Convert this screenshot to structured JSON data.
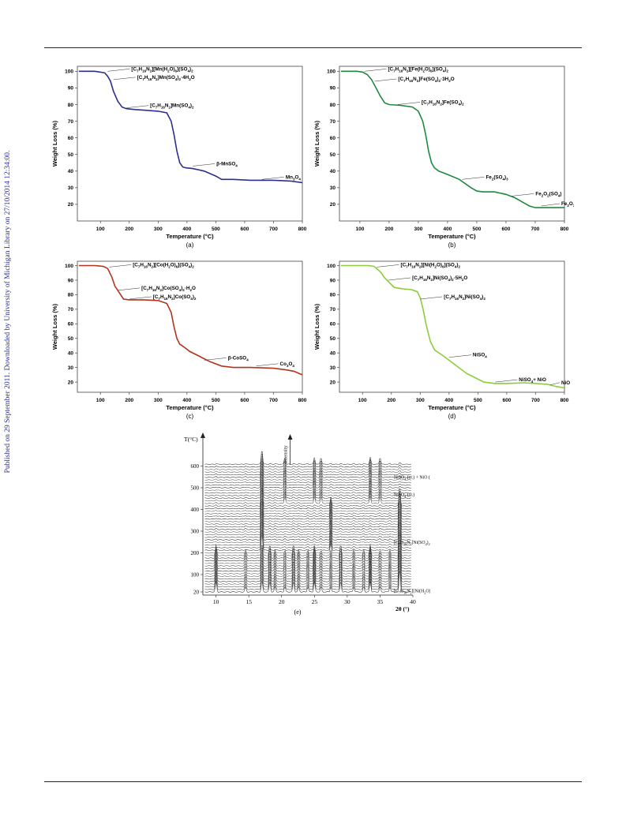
{
  "side_note": "Published on 29 September 2011. Downloaded by University of Michigan Library on 27/10/2014 12:34:00.",
  "chart_data": [
    {
      "type": "line",
      "panel_label": "(a)",
      "color": "#2c2f8f",
      "xlabel": "Temperature (°C)",
      "ylabel": "Weight Loss (%)",
      "xlim": [
        20,
        800
      ],
      "ylim": [
        10,
        103
      ],
      "xticks": [
        100,
        200,
        300,
        400,
        500,
        600,
        700,
        800
      ],
      "yticks": [
        20,
        30,
        40,
        50,
        60,
        70,
        80,
        90,
        100
      ],
      "series": [
        {
          "x": [
            25,
            80,
            100,
            115,
            125,
            135,
            145,
            160,
            175,
            190,
            220,
            260,
            300,
            330,
            345,
            355,
            365,
            375,
            385,
            395,
            420,
            460,
            500,
            520,
            560,
            620,
            700,
            760,
            800
          ],
          "y": [
            100,
            100,
            99.5,
            99,
            97,
            94,
            88,
            82,
            78.5,
            77.5,
            77,
            76.5,
            76,
            75,
            70,
            62,
            52,
            45,
            42.5,
            42,
            41.5,
            40,
            37,
            35,
            35,
            34.5,
            34.5,
            34,
            33
          ]
        }
      ],
      "annotations": [
        {
          "text": "[C7H16N2][Mn(H2O)6](SO4)2",
          "x": 125,
          "y": 100
        },
        {
          "text": "[C7H16N2]Mn(SO4)2·4H2O",
          "x": 145,
          "y": 95
        },
        {
          "text": "[C7H16N2]Mn(SO4)2",
          "x": 190,
          "y": 78
        },
        {
          "text": "β-MnSO4",
          "x": 420,
          "y": 43
        },
        {
          "text": "Mn3O4",
          "x": 660,
          "y": 35
        }
      ]
    },
    {
      "type": "line",
      "panel_label": "(b)",
      "color": "#1f8a3e",
      "xlabel": "Temperature (°C)",
      "ylabel": "Weight Loss (%)",
      "xlim": [
        30,
        800
      ],
      "ylim": [
        10,
        103
      ],
      "xticks": [
        100,
        200,
        300,
        400,
        500,
        600,
        700,
        800
      ],
      "yticks": [
        20,
        30,
        40,
        50,
        60,
        70,
        80,
        90,
        100
      ],
      "series": [
        {
          "x": [
            35,
            90,
            110,
            125,
            140,
            155,
            170,
            185,
            200,
            240,
            280,
            300,
            315,
            325,
            335,
            345,
            355,
            370,
            400,
            440,
            480,
            500,
            520,
            560,
            600,
            630,
            660,
            680,
            700,
            740,
            800
          ],
          "y": [
            100,
            100,
            99.5,
            98,
            95,
            90,
            85,
            81,
            80,
            79.5,
            78.5,
            76,
            70,
            62,
            52,
            45,
            42,
            40,
            38,
            35,
            30,
            28,
            27.5,
            27.5,
            26,
            24,
            21,
            19,
            18,
            18,
            18
          ]
        }
      ],
      "annotations": [
        {
          "text": "[C7H16N2][Fe(H2O)6](SO4)2",
          "x": 115,
          "y": 100
        },
        {
          "text": "[C7H16N2]Fe(SO4)2·3H2O",
          "x": 150,
          "y": 94
        },
        {
          "text": "[C7H16N2]Fe(SO4)2",
          "x": 230,
          "y": 80
        },
        {
          "text": "Fe2(SO4)3",
          "x": 450,
          "y": 35
        },
        {
          "text": "Fe2O2(SO4)",
          "x": 620,
          "y": 25
        },
        {
          "text": "Fe2O3",
          "x": 720,
          "y": 19
        }
      ]
    },
    {
      "type": "line",
      "panel_label": "(c)",
      "color": "#b5321d",
      "xlabel": "Temperature (°C)",
      "ylabel": "Weight Loss (%)",
      "xlim": [
        20,
        800
      ],
      "ylim": [
        13,
        103
      ],
      "xticks": [
        100,
        200,
        300,
        400,
        500,
        600,
        700,
        800
      ],
      "yticks": [
        20,
        30,
        40,
        50,
        60,
        70,
        80,
        90,
        100
      ],
      "series": [
        {
          "x": [
            25,
            80,
            110,
            125,
            140,
            150,
            160,
            170,
            180,
            200,
            250,
            300,
            330,
            345,
            355,
            365,
            375,
            390,
            410,
            440,
            480,
            520,
            560,
            620,
            700,
            740,
            770,
            800
          ],
          "y": [
            100,
            100,
            99.5,
            98,
            92,
            86,
            83,
            80,
            77,
            76.5,
            76.5,
            76,
            74,
            68,
            58,
            50,
            46,
            44,
            41,
            38,
            34,
            31,
            30,
            30,
            29.5,
            28.5,
            27.5,
            25
          ]
        }
      ],
      "annotations": [
        {
          "text": "[C7H16N2][Co(H2O)6](SO4)2",
          "x": 130,
          "y": 99
        },
        {
          "text": "[C7H16N2]Co(SO4)2·H2O",
          "x": 160,
          "y": 83
        },
        {
          "text": "[C7H16N2]Co(SO4)2",
          "x": 200,
          "y": 77
        },
        {
          "text": "β-CoSO4",
          "x": 460,
          "y": 35
        },
        {
          "text": "Co3O4",
          "x": 640,
          "y": 31
        }
      ]
    },
    {
      "type": "line",
      "panel_label": "(d)",
      "color": "#8ccc3a",
      "xlabel": "Temperature (°C)",
      "ylabel": "Weight Loss (%)",
      "xlim": [
        20,
        800
      ],
      "ylim": [
        13,
        103
      ],
      "xticks": [
        100,
        200,
        300,
        400,
        500,
        600,
        700,
        800
      ],
      "yticks": [
        20,
        30,
        40,
        50,
        60,
        70,
        80,
        90,
        100
      ],
      "series": [
        {
          "x": [
            25,
            120,
            140,
            155,
            165,
            175,
            185,
            195,
            210,
            240,
            270,
            290,
            300,
            310,
            320,
            335,
            350,
            380,
            420,
            460,
            500,
            520,
            560,
            600,
            660,
            700,
            740,
            770,
            800
          ],
          "y": [
            100,
            100,
            99.5,
            97,
            95,
            92,
            90,
            88,
            85,
            84,
            83.5,
            82,
            78,
            70,
            60,
            48,
            42,
            38,
            32,
            26,
            22,
            20,
            19,
            19,
            19.5,
            19,
            18.5,
            17,
            16
          ]
        }
      ],
      "annotations": [
        {
          "text": "[C7H16N2][Ni(H2O)6](SO4)2",
          "x": 150,
          "y": 99
        },
        {
          "text": "[C7H16N2]Ni(SO4)2·5H2O",
          "x": 190,
          "y": 90
        },
        {
          "text": "[C7H16N2]Ni(SO4)2",
          "x": 300,
          "y": 77
        },
        {
          "text": "NiSO4",
          "x": 400,
          "y": 37
        },
        {
          "text": "NiSO4+ NiO",
          "x": 560,
          "y": 20
        },
        {
          "text": "NiO",
          "x": 750,
          "y": 18
        }
      ]
    },
    {
      "type": "line",
      "panel_label": "(e)",
      "ylabel": "T(°C)",
      "xlabel": "2θ (°)",
      "intensity_label": "Intensity",
      "xlim": [
        8,
        40
      ],
      "xticks": [
        10,
        15,
        20,
        25,
        30,
        35,
        40
      ],
      "yticks": [
        20,
        100,
        200,
        300,
        400,
        500,
        600
      ],
      "peaks": [
        10,
        14.5,
        17,
        18.2,
        19,
        20.5,
        21.8,
        22.6,
        24,
        25,
        26,
        27.5,
        29,
        31,
        32.5,
        33.5,
        35,
        36.5,
        38
      ],
      "annotations": [
        {
          "text": "NiSO4 (cr.) + NiO (cr.)",
          "temperature": 550
        },
        {
          "text": "NiSO4 (cr.)",
          "temperature": 470
        },
        {
          "text": "[C7H16N2]Ni(SO4)2 (am.)",
          "temperature": 250
        },
        {
          "text": "[C7H16N2][Ni(H2O)6](SO4)2",
          "temperature": 25
        }
      ]
    }
  ]
}
